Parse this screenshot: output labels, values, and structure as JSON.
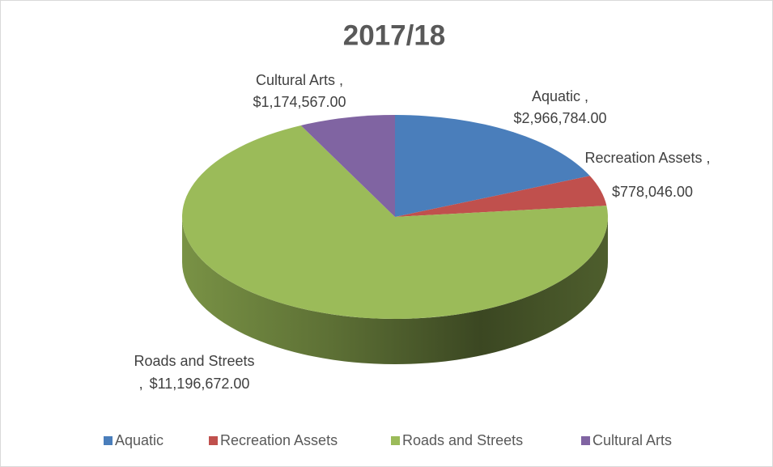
{
  "chart_data": {
    "type": "pie",
    "title": "2017/18",
    "categories": [
      "Aquatic",
      "Recreation Assets",
      "Roads and Streets",
      "Cultural Arts"
    ],
    "values": [
      2966784,
      778046,
      11196672,
      1174567
    ],
    "value_labels": [
      "$2,966,784.00",
      "$778,046.00",
      "$11,196,672.00",
      "$1,174,567.00"
    ],
    "label_separator": ",",
    "colors": [
      "#4a7ebb",
      "#c0504d",
      "#9bbb59",
      "#8064a2"
    ],
    "legend": "bottom"
  }
}
